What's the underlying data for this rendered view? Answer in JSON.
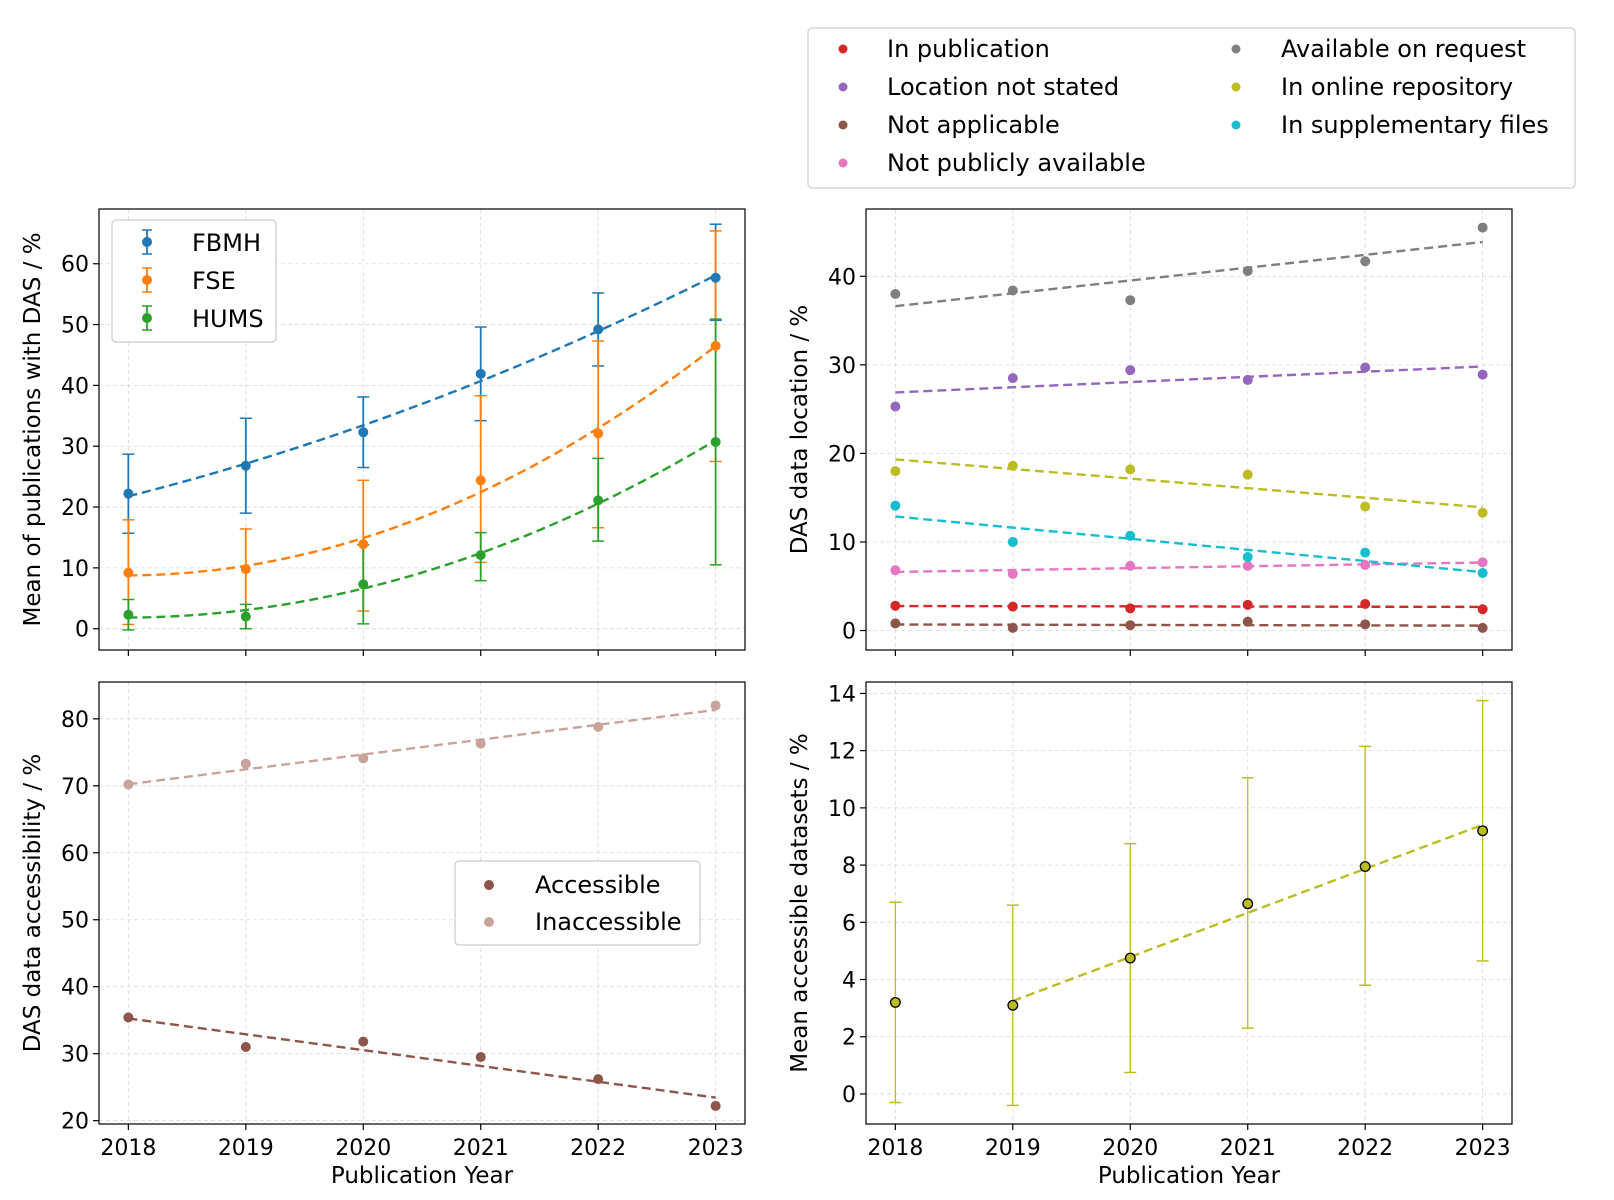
{
  "colors": {
    "FBMH": "#1f77b4",
    "FSE": "#ff7f0e",
    "HUMS": "#2ca02c",
    "In publication": "#d62728",
    "Location not stated": "#9467bd",
    "Not applicable": "#8c564b",
    "Not publicly available": "#e377c2",
    "Available on request": "#7f7f7f",
    "In online repository": "#bcbd22",
    "In supplementary files": "#17becf",
    "Accessible": "#8c564b",
    "Inaccessible": "#c9a49b",
    "grid": "#d9d9d9"
  },
  "top_legend": {
    "left_column": [
      "In publication",
      "Location not stated",
      "Not applicable",
      "Not publicly available"
    ],
    "right_column": [
      "Available on request",
      "In online repository",
      "In supplementary files"
    ]
  },
  "chart_data": [
    {
      "id": "faculty",
      "type": "scatter",
      "title": "",
      "xlabel": "",
      "ylabel": "Mean of publications with DAS / %",
      "x": [
        2018,
        2019,
        2020,
        2021,
        2022,
        2023
      ],
      "xlim": [
        2017.75,
        2023.25
      ],
      "ylim": [
        -3.5,
        69
      ],
      "yticks": [
        0,
        10,
        20,
        30,
        40,
        50,
        60
      ],
      "show_xticklabels": false,
      "grid": true,
      "legend": "top-left",
      "error_bars": true,
      "fit": "quadratic",
      "series": [
        {
          "name": "FBMH",
          "values": [
            22.2,
            26.8,
            32.3,
            41.9,
            49.2,
            57.7
          ],
          "err_low": [
            6.5,
            7.8,
            5.8,
            7.7,
            6.0,
            7.0
          ],
          "err_high": [
            6.5,
            7.8,
            5.8,
            7.7,
            6.0,
            8.8
          ]
        },
        {
          "name": "FSE",
          "values": [
            9.2,
            9.8,
            13.9,
            24.4,
            32.1,
            46.5
          ],
          "err_low": [
            8.5,
            9.8,
            11.0,
            13.5,
            15.5,
            19.0
          ],
          "err_high": [
            8.7,
            6.6,
            10.5,
            13.9,
            15.2,
            18.9
          ]
        },
        {
          "name": "HUMS",
          "values": [
            2.3,
            2.0,
            7.3,
            12.1,
            21.1,
            30.7
          ],
          "err_low": [
            2.5,
            2.0,
            6.5,
            4.2,
            6.7,
            20.2
          ],
          "err_high": [
            2.5,
            2.0,
            6.5,
            3.7,
            6.9,
            20.2
          ]
        }
      ]
    },
    {
      "id": "location",
      "type": "scatter",
      "title": "",
      "xlabel": "",
      "ylabel": "DAS data location / %",
      "x": [
        2018,
        2019,
        2020,
        2021,
        2022,
        2023
      ],
      "xlim": [
        2017.75,
        2023.25
      ],
      "ylim": [
        -2.2,
        47.6
      ],
      "yticks": [
        0,
        10,
        20,
        30,
        40
      ],
      "show_xticklabels": false,
      "grid": true,
      "fit": "linear",
      "series": [
        {
          "name": "In publication",
          "values": [
            2.8,
            2.7,
            2.5,
            2.9,
            3.0,
            2.4
          ]
        },
        {
          "name": "Location not stated",
          "values": [
            25.3,
            28.5,
            29.4,
            28.3,
            29.7,
            28.9
          ]
        },
        {
          "name": "Not applicable",
          "values": [
            0.8,
            0.3,
            0.6,
            1.0,
            0.7,
            0.3
          ]
        },
        {
          "name": "Not publicly available",
          "values": [
            6.8,
            6.4,
            7.3,
            7.3,
            7.4,
            7.7
          ]
        },
        {
          "name": "Available on request",
          "values": [
            38.0,
            38.4,
            37.3,
            40.6,
            41.7,
            45.5
          ]
        },
        {
          "name": "In online repository",
          "values": [
            18.0,
            18.6,
            18.2,
            17.6,
            14.0,
            13.3
          ]
        },
        {
          "name": "In supplementary files",
          "values": [
            14.1,
            10.0,
            10.7,
            8.3,
            8.8,
            6.5
          ]
        }
      ]
    },
    {
      "id": "accessibility",
      "type": "scatter",
      "title": "",
      "xlabel": "Publication Year",
      "ylabel": "DAS data accessibility / %",
      "x": [
        2018,
        2019,
        2020,
        2021,
        2022,
        2023
      ],
      "xlim": [
        2017.75,
        2023.25
      ],
      "ylim": [
        19.5,
        85.5
      ],
      "yticks": [
        20,
        30,
        40,
        50,
        60,
        70,
        80
      ],
      "show_xticklabels": true,
      "grid": true,
      "legend": "center-right",
      "fit": "linear",
      "series": [
        {
          "name": "Accessible",
          "values": [
            35.4,
            31.0,
            31.8,
            29.5,
            26.2,
            22.2
          ]
        },
        {
          "name": "Inaccessible",
          "values": [
            70.2,
            73.3,
            74.1,
            76.3,
            78.8,
            82.0
          ]
        }
      ]
    },
    {
      "id": "datasets",
      "type": "scatter",
      "title": "",
      "xlabel": "Publication Year",
      "ylabel": "Mean accessible datasets / %",
      "x": [
        2018,
        2019,
        2020,
        2021,
        2022,
        2023
      ],
      "xlim": [
        2017.75,
        2023.25
      ],
      "ylim": [
        -1.05,
        14.4
      ],
      "yticks": [
        0,
        2,
        4,
        6,
        8,
        10,
        12,
        14
      ],
      "show_xticklabels": true,
      "grid": true,
      "error_bars": true,
      "fit": "linear-from-2019",
      "series": [
        {
          "values": [
            3.2,
            3.1,
            4.75,
            6.65,
            7.95,
            9.2
          ],
          "err_low": [
            3.5,
            3.5,
            4.0,
            4.35,
            4.15,
            4.55
          ],
          "err_high": [
            3.5,
            3.5,
            4.0,
            4.4,
            4.2,
            4.55
          ]
        }
      ]
    }
  ]
}
